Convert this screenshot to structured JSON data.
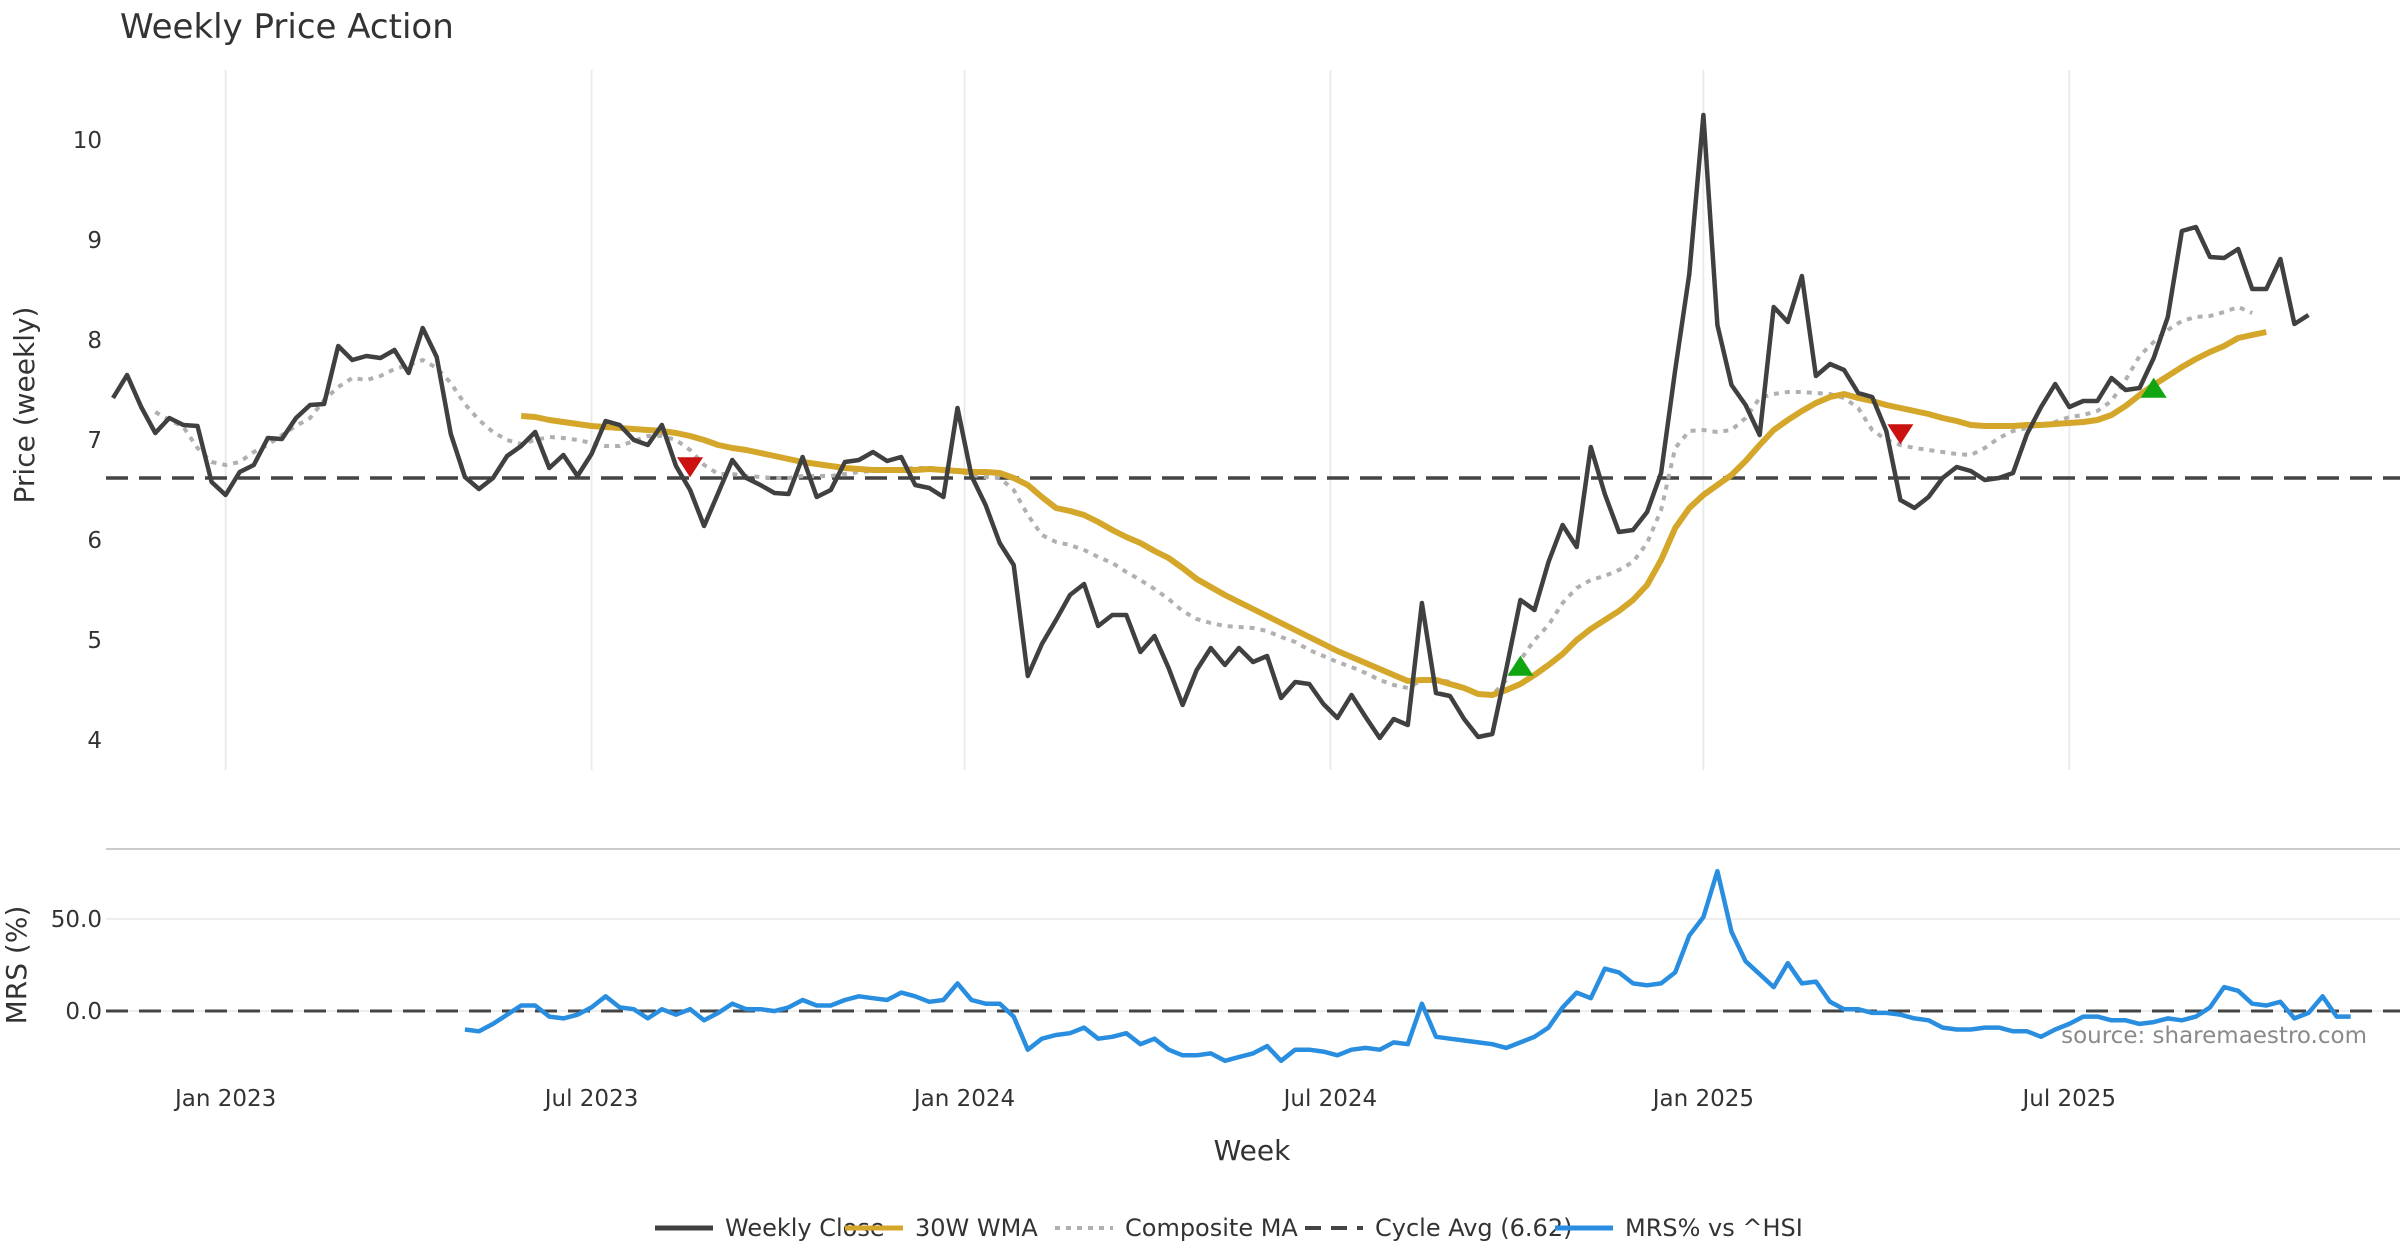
{
  "chart_data": {
    "type": "line",
    "title": "Weekly Price Action",
    "xlabel": "Week",
    "source": "source: sharemaestro.com",
    "x_ticks": [
      "Jan 2023",
      "Jul 2023",
      "Jan 2024",
      "Jul 2024",
      "Jan 2025",
      "Jul 2025"
    ],
    "x_tick_weeks": [
      8,
      34,
      60.5,
      86.5,
      113,
      139
    ],
    "week_range": [
      -0.5,
      162.5
    ],
    "upper_panel": {
      "ylabel": "Price (weekly)",
      "ylim": [
        3.7,
        10.7
      ],
      "y_ticks": [
        4,
        5,
        6,
        7,
        8,
        9,
        10
      ],
      "cycle_avg": 6.62,
      "series": [
        {
          "name": "Weekly Close",
          "color": "#404040",
          "start_week": 0,
          "values": [
            7.42,
            7.65,
            7.33,
            7.07,
            7.22,
            7.15,
            7.14,
            6.58,
            6.45,
            6.68,
            6.75,
            7.02,
            7.01,
            7.22,
            7.35,
            7.36,
            7.94,
            7.8,
            7.84,
            7.82,
            7.9,
            7.67,
            8.12,
            7.83,
            7.06,
            6.63,
            6.51,
            6.62,
            6.84,
            6.94,
            7.08,
            6.72,
            6.85,
            6.64,
            6.86,
            7.19,
            7.15,
            7.0,
            6.95,
            7.15,
            6.74,
            6.5,
            6.14,
            6.47,
            6.8,
            6.62,
            6.55,
            6.47,
            6.46,
            6.83,
            6.43,
            6.5,
            6.78,
            6.8,
            6.88,
            6.79,
            6.83,
            6.55,
            6.52,
            6.43,
            7.32,
            6.64,
            6.35,
            5.97,
            5.75,
            4.64,
            4.96,
            5.2,
            5.45,
            5.56,
            5.14,
            5.25,
            5.25,
            4.88,
            5.04,
            4.72,
            4.35,
            4.7,
            4.92,
            4.75,
            4.92,
            4.78,
            4.84,
            4.42,
            4.58,
            4.56,
            4.36,
            4.22,
            4.45,
            4.23,
            4.02,
            4.21,
            4.15,
            5.37,
            4.47,
            4.44,
            4.21,
            4.03,
            4.06,
            4.71,
            5.4,
            5.3,
            5.78,
            6.15,
            5.93,
            6.93,
            6.46,
            6.08,
            6.1,
            6.28,
            6.67,
            7.7,
            8.66,
            10.25,
            8.15,
            7.55,
            7.35,
            7.05,
            8.33,
            8.18,
            8.64,
            7.64,
            7.76,
            7.7,
            7.47,
            7.43,
            7.09,
            6.4,
            6.32,
            6.43,
            6.62,
            6.73,
            6.69,
            6.6,
            6.62,
            6.67,
            7.06,
            7.33,
            7.56,
            7.33,
            7.39,
            7.39,
            7.62,
            7.5,
            7.52,
            7.82,
            8.23,
            9.09,
            9.13,
            8.83,
            8.82,
            8.91,
            8.51,
            8.51,
            8.81,
            8.16,
            8.25
          ]
        },
        {
          "name": "30W WMA",
          "color": "#d4a62a",
          "start_week": 29,
          "values": [
            7.24,
            7.23,
            7.2,
            7.18,
            7.16,
            7.14,
            7.13,
            7.12,
            7.11,
            7.1,
            7.09,
            7.07,
            7.04,
            7.0,
            6.95,
            6.92,
            6.9,
            6.87,
            6.84,
            6.81,
            6.78,
            6.76,
            6.74,
            6.72,
            6.71,
            6.7,
            6.7,
            6.7,
            6.7,
            6.71,
            6.7,
            6.69,
            6.68,
            6.68,
            6.67,
            6.62,
            6.55,
            6.43,
            6.32,
            6.29,
            6.25,
            6.18,
            6.1,
            6.03,
            5.97,
            5.89,
            5.82,
            5.72,
            5.61,
            5.53,
            5.45,
            5.38,
            5.31,
            5.24,
            5.17,
            5.1,
            5.03,
            4.96,
            4.89,
            4.83,
            4.77,
            4.71,
            4.65,
            4.59,
            4.6,
            4.6,
            4.56,
            4.52,
            4.46,
            4.45,
            4.5,
            4.56,
            4.65,
            4.75,
            4.86,
            5.0,
            5.11,
            5.2,
            5.29,
            5.4,
            5.55,
            5.8,
            6.12,
            6.32,
            6.45,
            6.55,
            6.65,
            6.79,
            6.95,
            7.1,
            7.2,
            7.29,
            7.37,
            7.43,
            7.46,
            7.42,
            7.39,
            7.35,
            7.32,
            7.29,
            7.26,
            7.22,
            7.19,
            7.15,
            7.14,
            7.14,
            7.14,
            7.15,
            7.15,
            7.16,
            7.17,
            7.18,
            7.2,
            7.25,
            7.34,
            7.45,
            7.55,
            7.64,
            7.73,
            7.81,
            7.88,
            7.94,
            8.02,
            8.05,
            8.08
          ]
        },
        {
          "name": "Composite MA",
          "color": "#b0b0b0",
          "dashed": true,
          "start_week": 3,
          "values": [
            7.28,
            7.2,
            7.13,
            6.92,
            6.78,
            6.75,
            6.78,
            6.88,
            6.95,
            7.05,
            7.14,
            7.22,
            7.4,
            7.53,
            7.62,
            7.6,
            7.64,
            7.71,
            7.75,
            7.8,
            7.72,
            7.57,
            7.36,
            7.2,
            7.08,
            7.0,
            6.96,
            7.0,
            7.03,
            7.02,
            7.0,
            6.97,
            6.94,
            6.94,
            6.99,
            7.04,
            7.04,
            7.0,
            6.9,
            6.75,
            6.66,
            6.66,
            6.64,
            6.63,
            6.62,
            6.62,
            6.64,
            6.64,
            6.64,
            6.66,
            6.68,
            6.69,
            6.7,
            6.71,
            6.72,
            6.72,
            6.71,
            6.69,
            6.65,
            6.63,
            6.62,
            6.5,
            6.25,
            6.05,
            5.98,
            5.95,
            5.9,
            5.83,
            5.77,
            5.68,
            5.6,
            5.51,
            5.41,
            5.29,
            5.21,
            5.17,
            5.14,
            5.13,
            5.12,
            5.09,
            5.03,
            4.98,
            4.9,
            4.84,
            4.78,
            4.73,
            4.67,
            4.6,
            4.55,
            4.52,
            4.6,
            4.61,
            4.58,
            4.52,
            4.46,
            4.45,
            4.6,
            4.8,
            5.0,
            5.15,
            5.37,
            5.52,
            5.6,
            5.64,
            5.7,
            5.78,
            5.97,
            6.3,
            6.92,
            7.09,
            7.1,
            7.08,
            7.1,
            7.22,
            7.42,
            7.46,
            7.48,
            7.48,
            7.47,
            7.46,
            7.42,
            7.32,
            7.1,
            7.0,
            6.95,
            6.92,
            6.9,
            6.88,
            6.86,
            6.85,
            6.92,
            7.02,
            7.09,
            7.12,
            7.15,
            7.18,
            7.23,
            7.25,
            7.29,
            7.39,
            7.6,
            7.84,
            7.98,
            8.1,
            8.19,
            8.23,
            8.24,
            8.28,
            8.33,
            8.27
          ]
        }
      ],
      "markers": [
        {
          "type": "sell",
          "week": 41,
          "value": 6.75,
          "color": "#cc1111"
        },
        {
          "type": "buy",
          "week": 100,
          "value": 4.72,
          "color": "#11a611"
        },
        {
          "type": "sell",
          "week": 127,
          "value": 7.08,
          "color": "#cc1111"
        },
        {
          "type": "buy",
          "week": 145,
          "value": 7.5,
          "color": "#11a611"
        }
      ]
    },
    "lower_panel": {
      "ylabel": "MRS (%)",
      "ylim": [
        -32,
        82
      ],
      "y_ticks": [
        "0.0",
        "50.0"
      ],
      "y_tick_values": [
        0,
        50
      ],
      "series": {
        "name": "MRS% vs ^HSI",
        "color": "#2a8ee0",
        "start_week": 25,
        "values": [
          -10,
          -11,
          -7,
          -2,
          3,
          3,
          -3,
          -4,
          -2,
          2,
          8,
          2,
          1,
          -4,
          1,
          -2,
          1,
          -5,
          -1,
          4,
          1,
          1,
          0,
          2,
          6,
          3,
          3,
          6,
          8,
          7,
          6,
          10,
          8,
          5,
          6,
          15,
          6,
          4,
          4,
          -3,
          -21,
          -15,
          -13,
          -12,
          -9,
          -15,
          -14,
          -12,
          -18,
          -15,
          -21,
          -24,
          -24,
          -23,
          -27,
          -25,
          -23,
          -19,
          -27,
          -21,
          -21,
          -22,
          -24,
          -21,
          -20,
          -21,
          -17,
          -18,
          4,
          -14,
          -15,
          -16,
          -17,
          -18,
          -20,
          -17,
          -14,
          -9,
          2,
          10,
          7,
          23,
          21,
          15,
          14,
          15,
          21,
          41,
          51,
          76,
          43,
          27,
          20,
          13,
          26,
          15,
          16,
          5,
          1,
          1,
          -1,
          -1,
          -2,
          -4,
          -5,
          -9,
          -10,
          -10,
          -9,
          -9,
          -11,
          -11,
          -14,
          -10,
          -7,
          -3,
          -3,
          -5,
          -5,
          -7,
          -6,
          -4,
          -5,
          -3,
          2,
          13,
          11,
          4,
          3,
          5,
          -4,
          -1,
          8,
          -3,
          -3
        ]
      }
    },
    "legend": [
      {
        "label": "Weekly Close",
        "color": "#404040",
        "style": "solid"
      },
      {
        "label": "30W WMA",
        "color": "#d4a62a",
        "style": "solid"
      },
      {
        "label": "Composite MA",
        "color": "#b0b0b0",
        "style": "dotted"
      },
      {
        "label": "Cycle Avg (6.62)",
        "color": "#444444",
        "style": "dashed"
      },
      {
        "label": "MRS% vs ^HSI",
        "color": "#2a8ee0",
        "style": "solid"
      }
    ]
  }
}
